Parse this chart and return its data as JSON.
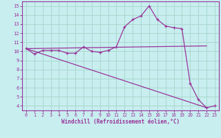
{
  "xlabel": "Windchill (Refroidissement éolien,°C)",
  "bg_color": "#c8eef0",
  "grid_color": "#aad8cc",
  "line_color": "#993399",
  "xlim": [
    -0.5,
    23.5
  ],
  "ylim": [
    3.5,
    15.5
  ],
  "yticks": [
    4,
    5,
    6,
    7,
    8,
    9,
    10,
    11,
    12,
    13,
    14,
    15
  ],
  "xticks": [
    0,
    1,
    2,
    3,
    4,
    5,
    6,
    7,
    8,
    9,
    10,
    11,
    12,
    13,
    14,
    15,
    16,
    17,
    18,
    19,
    20,
    21,
    22,
    23
  ],
  "line1_x": [
    0,
    1,
    2,
    3,
    4,
    5,
    6,
    7,
    8,
    9,
    10,
    11,
    12,
    13,
    14,
    15,
    16,
    17,
    18,
    19,
    20,
    21,
    22,
    23
  ],
  "line1_y": [
    10.3,
    9.7,
    10.1,
    10.1,
    10.1,
    9.8,
    9.8,
    10.5,
    10.0,
    9.9,
    10.1,
    10.5,
    12.7,
    13.5,
    13.9,
    15.0,
    13.5,
    12.8,
    12.6,
    12.5,
    6.5,
    4.7,
    3.8,
    4.0
  ],
  "line2_x": [
    0,
    22
  ],
  "line2_y": [
    10.3,
    10.6
  ],
  "line3_x": [
    0,
    22
  ],
  "line3_y": [
    10.3,
    3.8
  ]
}
